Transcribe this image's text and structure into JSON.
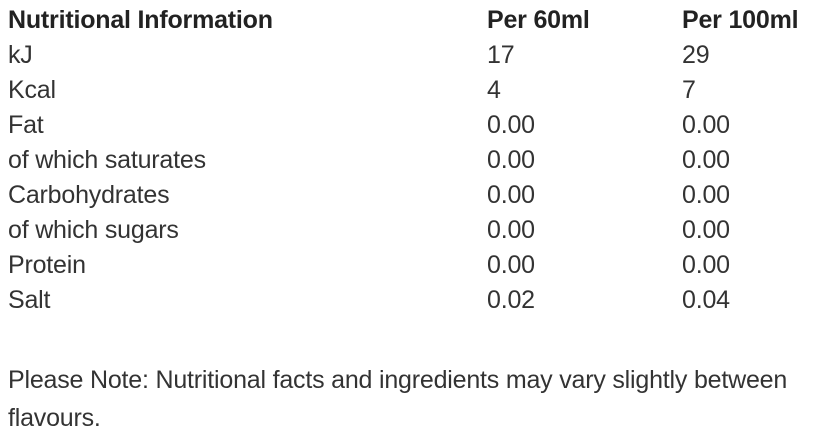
{
  "table": {
    "headers": [
      "Nutritional Information",
      "Per 60ml",
      "Per 100ml"
    ],
    "rows": [
      {
        "label": "kJ",
        "per60": "17",
        "per100": "29"
      },
      {
        "label": "Kcal",
        "per60": "4",
        "per100": "7"
      },
      {
        "label": "Fat",
        "per60": "0.00",
        "per100": "0.00"
      },
      {
        "label": "of which saturates",
        "per60": "0.00",
        "per100": "0.00"
      },
      {
        "label": "Carbohydrates",
        "per60": "0.00",
        "per100": "0.00"
      },
      {
        "label": "of which sugars",
        "per60": "0.00",
        "per100": "0.00"
      },
      {
        "label": "Protein",
        "per60": "0.00",
        "per100": "0.00"
      },
      {
        "label": "Salt",
        "per60": "0.02",
        "per100": "0.04"
      }
    ]
  },
  "note": "Please Note: Nutritional facts and ingredients may vary slightly between flavours.",
  "colors": {
    "heading_text": "#222222",
    "body_text": "#333333",
    "background": "#ffffff"
  }
}
